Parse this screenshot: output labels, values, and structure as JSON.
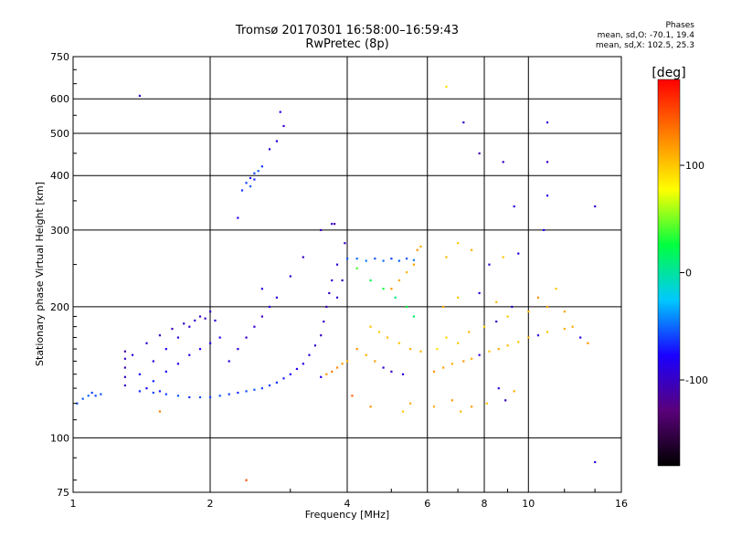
{
  "header": {
    "title_line1": "Tromsø 20170301 16:58:00–16:59:43",
    "title_line2": "RwPretec (8p)"
  },
  "phases": {
    "heading": "Phases",
    "line_o": "mean, sd,O: -70.1, 19.4",
    "line_x": "mean, sd,X: 102.5, 25.3"
  },
  "colorbar": {
    "unit": "[deg]",
    "ticks": [
      "100",
      "0",
      "-100"
    ],
    "range": [
      -180,
      180
    ],
    "colors": [
      "#000000",
      "#5a007a",
      "#1a00ff",
      "#00c8ff",
      "#00ff40",
      "#ffff00",
      "#ff8000",
      "#ff0000"
    ]
  },
  "chart_data": {
    "type": "scatter",
    "title": "Tromsø 20170301 16:58:00–16:59:43",
    "subtitle": "RwPretec (8p)",
    "xlabel": "Frequency [MHz]",
    "ylabel": "Stationary phase Virtual Height [km]",
    "x_scale": "log",
    "y_scale": "log",
    "xlim": [
      1,
      16
    ],
    "ylim": [
      75,
      750
    ],
    "x_ticks": [
      "1",
      "2",
      "4",
      "6",
      "8",
      "10",
      "16"
    ],
    "x_tick_values": [
      1,
      2,
      4,
      6,
      8,
      10,
      16
    ],
    "y_ticks": [
      "75",
      "100",
      "200",
      "300",
      "400",
      "500",
      "600",
      "750"
    ],
    "y_tick_values": [
      75,
      100,
      200,
      300,
      400,
      500,
      600,
      750
    ],
    "grid": true,
    "color_variable": "phase [deg]",
    "points": [
      [
        1.02,
        120,
        -60
      ],
      [
        1.05,
        123,
        -55
      ],
      [
        1.08,
        125,
        -50
      ],
      [
        1.1,
        127,
        -60
      ],
      [
        1.12,
        125,
        -58
      ],
      [
        1.15,
        126,
        -55
      ],
      [
        1.3,
        132,
        -95
      ],
      [
        1.3,
        138,
        -100
      ],
      [
        1.3,
        145,
        -105
      ],
      [
        1.3,
        152,
        -100
      ],
      [
        1.3,
        158,
        -108
      ],
      [
        1.4,
        128,
        -65
      ],
      [
        1.45,
        130,
        -75
      ],
      [
        1.5,
        127,
        -60
      ],
      [
        1.55,
        128,
        -70
      ],
      [
        1.6,
        126,
        -60
      ],
      [
        1.7,
        125,
        -55
      ],
      [
        1.8,
        124,
        -65
      ],
      [
        1.9,
        124,
        -58
      ],
      [
        2.0,
        124,
        -60
      ],
      [
        2.1,
        125,
        -55
      ],
      [
        2.2,
        126,
        -60
      ],
      [
        2.3,
        127,
        -65
      ],
      [
        2.4,
        128,
        -58
      ],
      [
        2.5,
        129,
        -55
      ],
      [
        2.6,
        130,
        -60
      ],
      [
        2.7,
        132,
        -62
      ],
      [
        2.8,
        134,
        -65
      ],
      [
        2.9,
        137,
        -70
      ],
      [
        3.0,
        140,
        -75
      ],
      [
        3.1,
        144,
        -80
      ],
      [
        3.2,
        148,
        -85
      ],
      [
        3.3,
        155,
        -90
      ],
      [
        3.4,
        163,
        -95
      ],
      [
        3.5,
        172,
        -100
      ],
      [
        3.55,
        185,
        -100
      ],
      [
        3.6,
        200,
        -105
      ],
      [
        3.65,
        215,
        -100
      ],
      [
        3.7,
        230,
        -95
      ],
      [
        1.35,
        155,
        -95
      ],
      [
        1.45,
        165,
        -95
      ],
      [
        1.55,
        172,
        -100
      ],
      [
        1.65,
        178,
        -105
      ],
      [
        1.75,
        183,
        -100
      ],
      [
        1.85,
        186,
        -95
      ],
      [
        1.95,
        188,
        -100
      ],
      [
        2.05,
        186,
        -90
      ],
      [
        1.4,
        140,
        -80
      ],
      [
        1.5,
        150,
        -85
      ],
      [
        1.6,
        160,
        -90
      ],
      [
        1.7,
        170,
        -92
      ],
      [
        1.8,
        180,
        -95
      ],
      [
        1.9,
        190,
        -98
      ],
      [
        2.0,
        195,
        -100
      ],
      [
        1.5,
        135,
        -70
      ],
      [
        1.6,
        142,
        -75
      ],
      [
        1.7,
        148,
        -80
      ],
      [
        1.8,
        155,
        -85
      ],
      [
        1.9,
        160,
        -80
      ],
      [
        2.0,
        165,
        -85
      ],
      [
        2.1,
        170,
        -82
      ],
      [
        2.2,
        150,
        -90
      ],
      [
        2.3,
        160,
        -95
      ],
      [
        2.4,
        170,
        -100
      ],
      [
        2.5,
        180,
        -95
      ],
      [
        2.6,
        190,
        -100
      ],
      [
        2.7,
        200,
        -90
      ],
      [
        2.8,
        210,
        -95
      ],
      [
        2.35,
        370,
        -65
      ],
      [
        2.4,
        385,
        -60
      ],
      [
        2.45,
        395,
        -70
      ],
      [
        2.5,
        405,
        -60
      ],
      [
        2.55,
        410,
        -55
      ],
      [
        2.6,
        420,
        -62
      ],
      [
        2.45,
        378,
        -55
      ],
      [
        2.5,
        392,
        -68
      ],
      [
        2.7,
        460,
        -90
      ],
      [
        2.8,
        480,
        -85
      ],
      [
        2.85,
        560,
        -80
      ],
      [
        2.9,
        520,
        -100
      ],
      [
        1.4,
        610,
        -100
      ],
      [
        2.3,
        320,
        -85
      ],
      [
        2.6,
        220,
        -90
      ],
      [
        3.0,
        235,
        -95
      ],
      [
        3.2,
        260,
        -100
      ],
      [
        3.5,
        300,
        -100
      ],
      [
        3.7,
        310,
        -95
      ],
      [
        3.6,
        140,
        120
      ],
      [
        3.7,
        142,
        130
      ],
      [
        3.8,
        145,
        125
      ],
      [
        3.9,
        148,
        118
      ],
      [
        4.0,
        150,
        110
      ],
      [
        3.5,
        138,
        -80
      ],
      [
        3.8,
        210,
        -95
      ],
      [
        3.9,
        230,
        -100
      ],
      [
        3.8,
        250,
        -90
      ],
      [
        3.95,
        280,
        -100
      ],
      [
        3.75,
        310,
        -110
      ],
      [
        4.0,
        258,
        -55
      ],
      [
        4.2,
        258,
        -50
      ],
      [
        4.4,
        255,
        -45
      ],
      [
        4.6,
        258,
        -55
      ],
      [
        4.8,
        255,
        -50
      ],
      [
        5.0,
        258,
        -60
      ],
      [
        5.2,
        255,
        -52
      ],
      [
        5.4,
        258,
        -55
      ],
      [
        5.6,
        256,
        -45
      ],
      [
        4.2,
        245,
        40
      ],
      [
        4.5,
        230,
        20
      ],
      [
        4.8,
        220,
        30
      ],
      [
        5.1,
        210,
        10
      ],
      [
        5.4,
        200,
        25
      ],
      [
        5.6,
        190,
        15
      ],
      [
        5.0,
        220,
        120
      ],
      [
        5.2,
        230,
        110
      ],
      [
        5.4,
        240,
        105
      ],
      [
        5.6,
        250,
        115
      ],
      [
        5.7,
        270,
        120
      ],
      [
        5.8,
        275,
        110
      ],
      [
        4.5,
        180,
        100
      ],
      [
        4.7,
        175,
        95
      ],
      [
        4.9,
        170,
        105
      ],
      [
        5.2,
        165,
        100
      ],
      [
        5.5,
        160,
        110
      ],
      [
        5.8,
        158,
        105
      ],
      [
        4.2,
        160,
        120
      ],
      [
        4.4,
        155,
        110
      ],
      [
        4.6,
        150,
        115
      ],
      [
        4.8,
        145,
        -95
      ],
      [
        5.0,
        142,
        -100
      ],
      [
        5.3,
        140,
        -90
      ],
      [
        6.2,
        142,
        120
      ],
      [
        6.5,
        145,
        115
      ],
      [
        6.8,
        148,
        110
      ],
      [
        7.2,
        150,
        120
      ],
      [
        7.5,
        152,
        110
      ],
      [
        7.8,
        155,
        -95
      ],
      [
        8.2,
        158,
        100
      ],
      [
        8.6,
        160,
        110
      ],
      [
        9.0,
        163,
        105
      ],
      [
        9.5,
        166,
        100
      ],
      [
        10.0,
        170,
        110
      ],
      [
        10.5,
        172,
        -90
      ],
      [
        11,
        175,
        100
      ],
      [
        12,
        178,
        110
      ],
      [
        6.3,
        160,
        90
      ],
      [
        6.6,
        170,
        95
      ],
      [
        7.0,
        165,
        100
      ],
      [
        7.4,
        175,
        105
      ],
      [
        8.0,
        180,
        95
      ],
      [
        8.5,
        185,
        -100
      ],
      [
        9.0,
        190,
        100
      ],
      [
        6.5,
        200,
        110
      ],
      [
        7.0,
        210,
        100
      ],
      [
        7.8,
        215,
        -95
      ],
      [
        8.5,
        205,
        105
      ],
      [
        9.2,
        200,
        -100
      ],
      [
        10,
        195,
        110
      ],
      [
        6.6,
        260,
        105
      ],
      [
        7.0,
        280,
        100
      ],
      [
        7.5,
        270,
        110
      ],
      [
        8.2,
        250,
        -95
      ],
      [
        8.8,
        260,
        100
      ],
      [
        9.5,
        265,
        -90
      ],
      [
        10.5,
        210,
        120
      ],
      [
        11,
        200,
        110
      ],
      [
        11.5,
        220,
        100
      ],
      [
        12,
        195,
        115
      ],
      [
        12.5,
        180,
        110
      ],
      [
        13,
        170,
        -90
      ],
      [
        13.5,
        165,
        120
      ],
      [
        6.6,
        640,
        90
      ],
      [
        7.2,
        530,
        -100
      ],
      [
        7.8,
        450,
        -110
      ],
      [
        8.8,
        430,
        -100
      ],
      [
        9.3,
        340,
        -95
      ],
      [
        11,
        530,
        -90
      ],
      [
        11,
        430,
        -100
      ],
      [
        11,
        360,
        -85
      ],
      [
        10.8,
        300,
        -80
      ],
      [
        14,
        340,
        -100
      ],
      [
        14,
        88,
        -95
      ],
      [
        2.4,
        80,
        150
      ],
      [
        5.5,
        120,
        110
      ],
      [
        6.8,
        122,
        120
      ],
      [
        7.5,
        118,
        115
      ],
      [
        8.1,
        120,
        100
      ],
      [
        8.9,
        122,
        -100
      ],
      [
        1.55,
        115,
        130
      ],
      [
        4.1,
        125,
        140
      ],
      [
        4.5,
        118,
        120
      ],
      [
        5.3,
        115,
        100
      ],
      [
        6.2,
        118,
        110
      ],
      [
        7.1,
        115,
        105
      ],
      [
        8.6,
        130,
        -90
      ],
      [
        9.3,
        128,
        110
      ]
    ]
  }
}
